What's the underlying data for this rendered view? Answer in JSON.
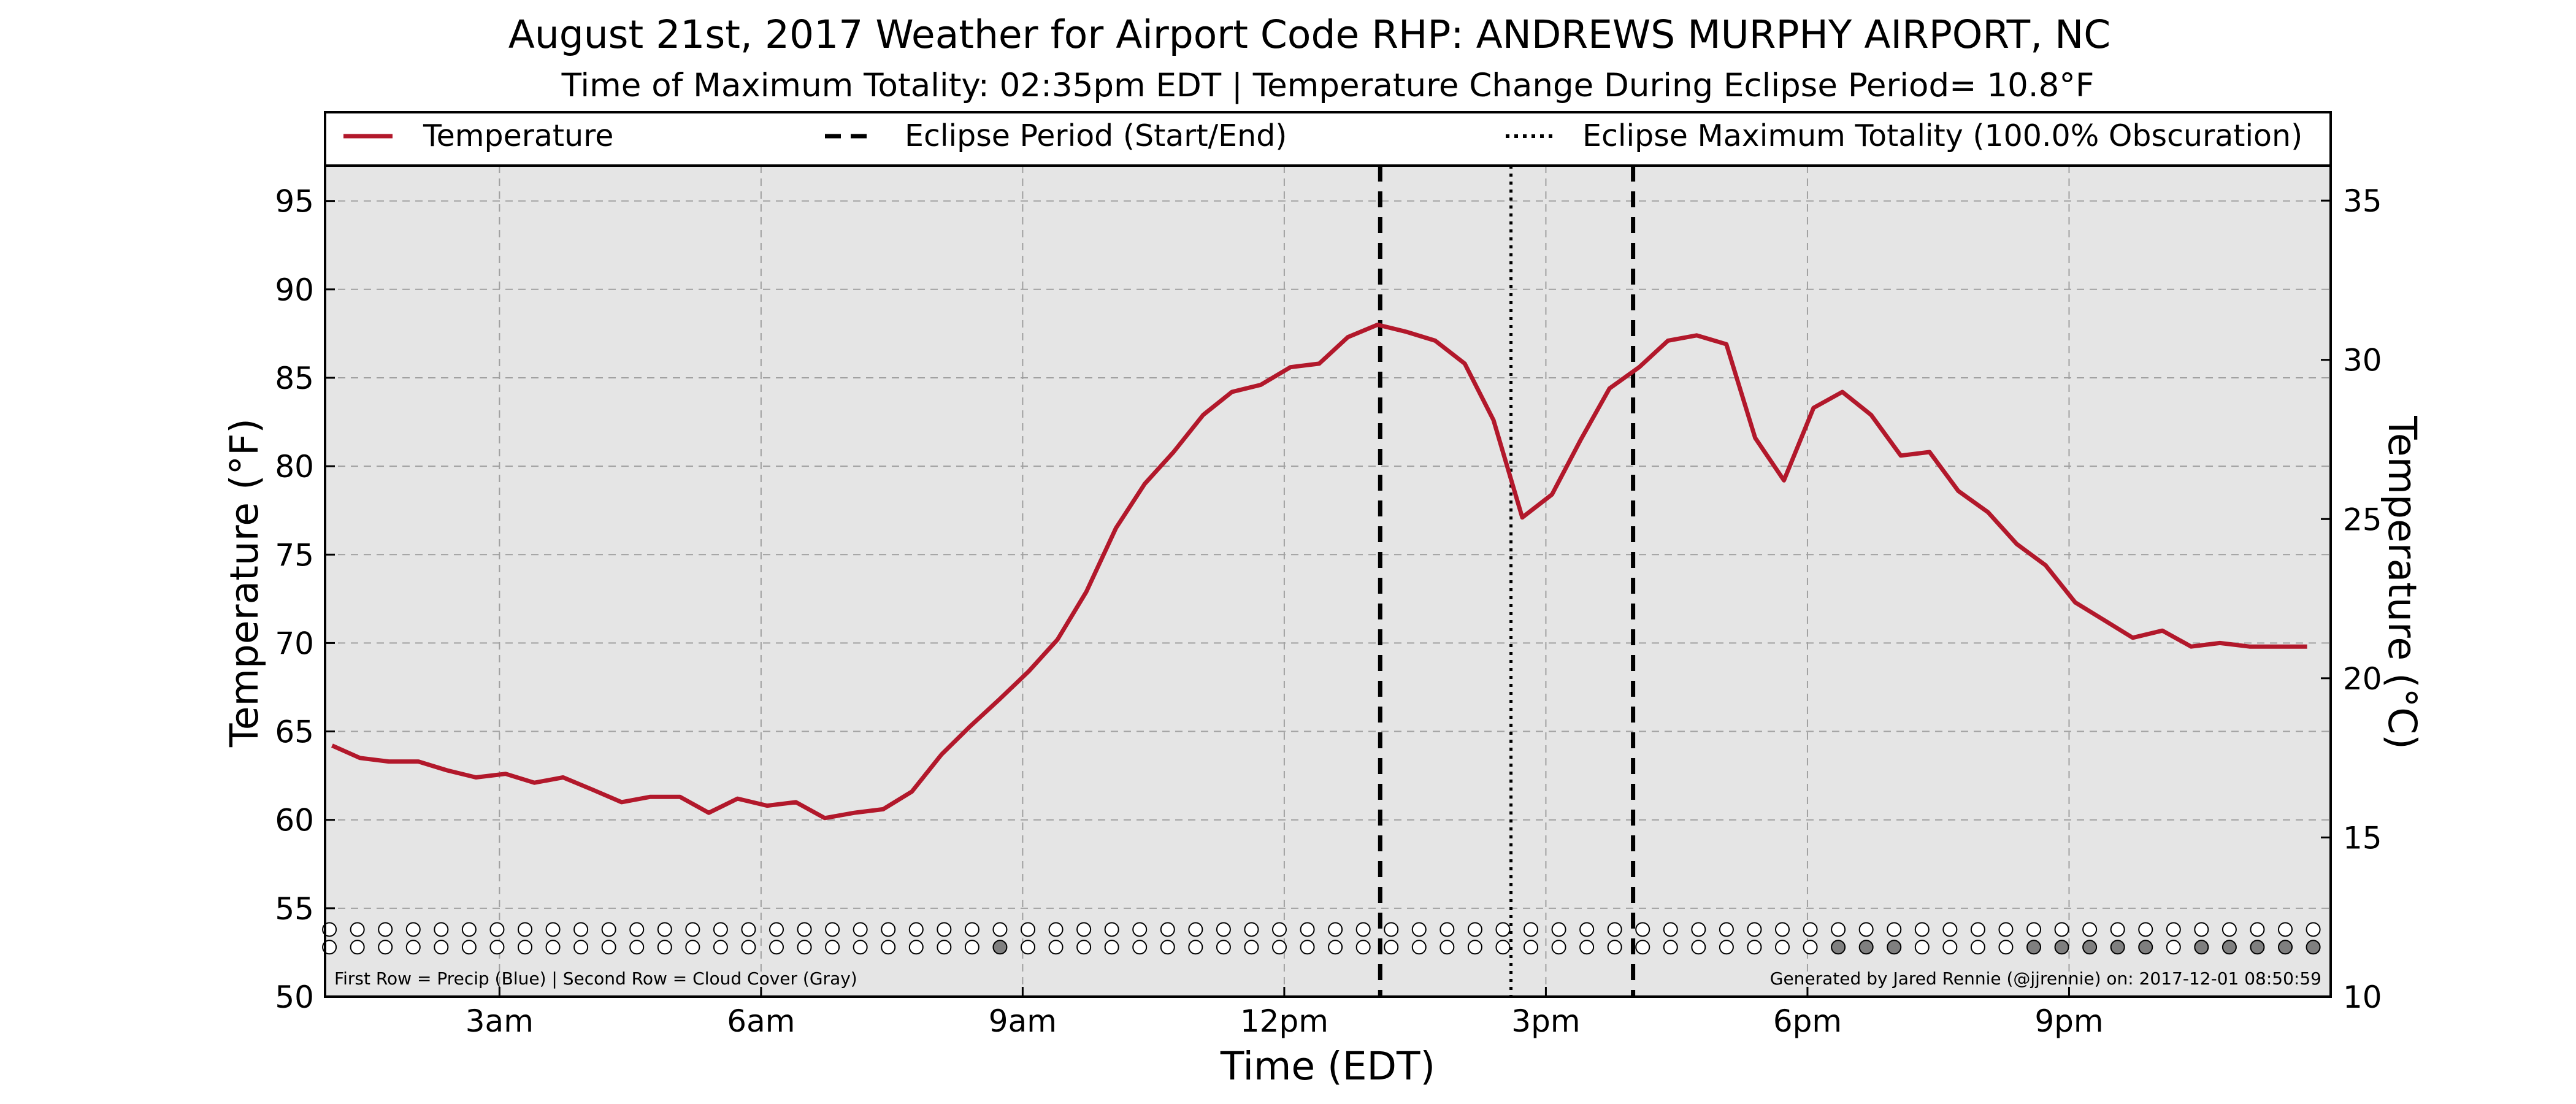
{
  "chart_data": {
    "type": "line",
    "title": "August 21st, 2017 Weather for Airport Code RHP: ANDREWS MURPHY AIRPORT, NC",
    "subtitle": "Time of Maximum Totality: 02:35pm EDT | Temperature Change During Eclipse Period= 10.8°F",
    "xlabel": "Time (EDT)",
    "ylabel": "Temperature (°F)",
    "ylabel_right": "Temperature (°C)",
    "xlim": [
      1.0,
      24.0
    ],
    "ylim": [
      50,
      97
    ],
    "ylim_right": [
      10,
      36.1
    ],
    "x_ticks": [
      {
        "x": 3,
        "label": "3am"
      },
      {
        "x": 6,
        "label": "6am"
      },
      {
        "x": 9,
        "label": "9am"
      },
      {
        "x": 12,
        "label": "12pm"
      },
      {
        "x": 15,
        "label": "3pm"
      },
      {
        "x": 18,
        "label": "6pm"
      },
      {
        "x": 21,
        "label": "9pm"
      }
    ],
    "y_ticks": [
      50,
      55,
      60,
      65,
      70,
      75,
      80,
      85,
      90,
      95
    ],
    "y_ticks_right": [
      10,
      15,
      20,
      25,
      30,
      35
    ],
    "grid": true,
    "legend_position": "top",
    "legend": [
      {
        "label": "Temperature",
        "style": "solid",
        "color": "#b2182b"
      },
      {
        "label": "Eclipse Period (Start/End)",
        "style": "dashed",
        "color": "#000000"
      },
      {
        "label": "Eclipse Maximum Totality (100.0% Obscuration)",
        "style": "dotted",
        "color": "#000000"
      }
    ],
    "series": [
      {
        "name": "Temperature",
        "color": "#b2182b",
        "x": [
          1.08,
          1.4,
          1.73,
          2.07,
          2.4,
          2.73,
          3.07,
          3.4,
          3.73,
          4.07,
          4.4,
          4.73,
          5.07,
          5.4,
          5.73,
          6.07,
          6.4,
          6.73,
          7.07,
          7.4,
          7.73,
          8.07,
          8.4,
          8.73,
          9.07,
          9.4,
          9.73,
          10.07,
          10.4,
          10.73,
          11.07,
          11.4,
          11.73,
          12.07,
          12.4,
          12.73,
          13.07,
          13.4,
          13.73,
          14.07,
          14.4,
          14.73,
          15.07,
          15.4,
          15.73,
          16.07,
          16.4,
          16.73,
          17.07,
          17.4,
          17.73,
          18.07,
          18.4,
          18.73,
          19.07,
          19.4,
          19.73,
          20.07,
          20.4,
          20.73,
          21.07,
          21.4,
          21.73,
          22.07,
          22.4,
          22.73,
          23.07,
          23.4,
          23.73
        ],
        "y": [
          64.2,
          63.5,
          63.3,
          63.3,
          62.8,
          62.4,
          62.6,
          62.1,
          62.4,
          61.7,
          61.0,
          61.3,
          61.3,
          60.4,
          61.2,
          60.8,
          61.0,
          60.1,
          60.4,
          60.6,
          61.6,
          63.7,
          65.3,
          66.8,
          68.4,
          70.2,
          72.9,
          76.5,
          79.0,
          80.8,
          82.9,
          84.2,
          84.6,
          85.6,
          85.8,
          87.3,
          88.0,
          87.6,
          87.1,
          85.8,
          82.6,
          77.1,
          78.4,
          81.5,
          84.4,
          85.6,
          87.1,
          87.4,
          86.9,
          81.6,
          79.2,
          83.3,
          84.2,
          82.9,
          80.6,
          80.8,
          78.6,
          77.4,
          75.6,
          74.4,
          72.3,
          71.3,
          70.3,
          70.7,
          69.8,
          70.0,
          69.8,
          69.8,
          69.8
        ]
      }
    ],
    "vlines": [
      {
        "x": 13.1,
        "style": "dashed",
        "meaning": "Eclipse start"
      },
      {
        "x": 14.6,
        "style": "dotted",
        "meaning": "Maximum totality"
      },
      {
        "x": 16.0,
        "style": "dashed",
        "meaning": "Eclipse end"
      }
    ],
    "indicator_rows": {
      "precip": [
        0,
        0,
        0,
        0,
        0,
        0,
        0,
        0,
        0,
        0,
        0,
        0,
        0,
        0,
        0,
        0,
        0,
        0,
        0,
        0,
        0,
        0,
        0,
        0,
        0,
        0,
        0,
        0,
        0,
        0,
        0,
        0,
        0,
        0,
        0,
        0,
        0,
        0,
        0,
        0,
        0,
        0,
        0,
        0,
        0,
        0,
        0,
        0,
        0,
        0,
        0,
        0,
        0,
        0,
        0,
        0,
        0,
        0,
        0,
        0,
        0,
        0,
        0,
        0,
        0,
        0,
        0,
        0,
        0,
        0,
        0,
        0
      ],
      "cloud": [
        0,
        0,
        0,
        0,
        0,
        0,
        0,
        0,
        0,
        0,
        0,
        0,
        0,
        0,
        0,
        0,
        0,
        0,
        0,
        0,
        0,
        0,
        0,
        0,
        1,
        0,
        0,
        0,
        0,
        0,
        0,
        0,
        0,
        0,
        0,
        0,
        0,
        0,
        0,
        0,
        0,
        0,
        0,
        0,
        0,
        0,
        0,
        0,
        0,
        0,
        0,
        0,
        0,
        0,
        1,
        1,
        1,
        0,
        0,
        0,
        0,
        1,
        1,
        1,
        1,
        1,
        0,
        1,
        1,
        1,
        1,
        1
      ]
    },
    "footnote_left": "First Row = Precip (Blue) | Second Row = Cloud Cover (Gray)",
    "footnote_right": "Generated by Jared Rennie (@jjrennie) on: 2017-12-01 08:50:59"
  }
}
